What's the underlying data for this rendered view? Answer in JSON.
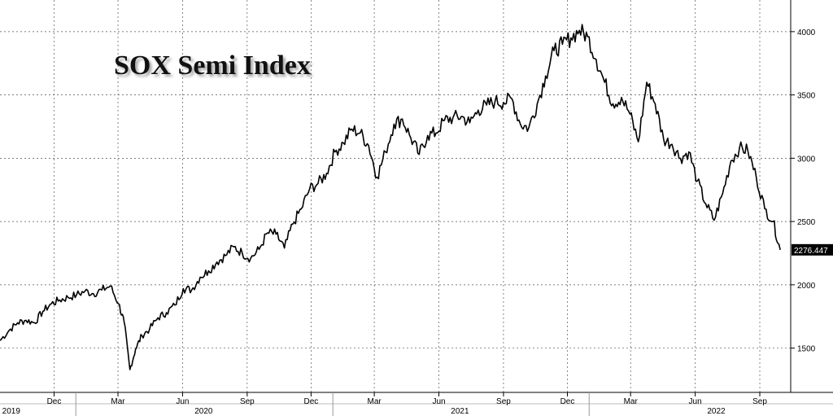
{
  "chart_data": {
    "type": "line",
    "title": "SOX Semi Index",
    "xlabel": "",
    "ylabel": "",
    "xlim": [
      "2019-09-15",
      "2022-10-15"
    ],
    "ylim": [
      1150,
      4250
    ],
    "y_ticks": [
      1500,
      2000,
      2500,
      3000,
      3500,
      4000
    ],
    "x_month_ticks": [
      {
        "label": "Dec",
        "date": "2019-12-01"
      },
      {
        "label": "Mar",
        "date": "2020-03-01"
      },
      {
        "label": "Jun",
        "date": "2020-06-01"
      },
      {
        "label": "Sep",
        "date": "2020-09-01"
      },
      {
        "label": "Dec",
        "date": "2020-12-01"
      },
      {
        "label": "Mar",
        "date": "2021-03-01"
      },
      {
        "label": "Jun",
        "date": "2021-06-01"
      },
      {
        "label": "Sep",
        "date": "2021-09-01"
      },
      {
        "label": "Dec",
        "date": "2021-12-01"
      },
      {
        "label": "Mar",
        "date": "2022-03-01"
      },
      {
        "label": "Jun",
        "date": "2022-06-01"
      },
      {
        "label": "Sep",
        "date": "2022-09-01"
      }
    ],
    "x_year_ticks": [
      {
        "label": "2019",
        "date": "2019-10-01"
      },
      {
        "label": "2020",
        "date": "2020-07-01"
      },
      {
        "label": "2021",
        "date": "2021-07-01"
      },
      {
        "label": "2022",
        "date": "2022-07-01"
      }
    ],
    "last_value_label": "2276.447",
    "last_value": 2276.447,
    "line_color": "#000000",
    "grid": true,
    "series": [
      {
        "x": [
          "2019-09-15",
          "2019-09-28",
          "2019-10-10",
          "2019-10-22",
          "2019-11-03",
          "2019-11-15",
          "2019-11-27",
          "2019-12-09",
          "2019-12-21",
          "2020-01-02",
          "2020-01-14",
          "2020-01-26",
          "2020-02-07",
          "2020-02-19",
          "2020-03-02",
          "2020-03-10",
          "2020-03-18",
          "2020-03-26",
          "2020-04-04",
          "2020-04-15",
          "2020-04-27",
          "2020-05-09",
          "2020-05-21",
          "2020-06-02",
          "2020-06-14",
          "2020-06-26",
          "2020-07-08",
          "2020-07-20",
          "2020-08-01",
          "2020-08-13",
          "2020-08-25",
          "2020-09-06",
          "2020-09-18",
          "2020-09-30",
          "2020-10-12",
          "2020-10-24",
          "2020-11-05",
          "2020-11-17",
          "2020-11-29",
          "2020-12-11",
          "2020-12-23",
          "2021-01-04",
          "2021-01-16",
          "2021-01-28",
          "2021-02-09",
          "2021-02-21",
          "2021-03-05",
          "2021-03-17",
          "2021-03-29",
          "2021-04-10",
          "2021-04-22",
          "2021-05-04",
          "2021-05-16",
          "2021-05-28",
          "2021-06-09",
          "2021-06-21",
          "2021-07-03",
          "2021-07-15",
          "2021-07-27",
          "2021-08-08",
          "2021-08-20",
          "2021-09-01",
          "2021-09-13",
          "2021-09-25",
          "2021-10-07",
          "2021-10-19",
          "2021-10-31",
          "2021-11-12",
          "2021-11-24",
          "2021-12-06",
          "2021-12-18",
          "2021-12-30",
          "2022-01-11",
          "2022-01-23",
          "2022-02-04",
          "2022-02-16",
          "2022-02-28",
          "2022-03-12",
          "2022-03-24",
          "2022-04-05",
          "2022-04-17",
          "2022-04-29",
          "2022-05-11",
          "2022-05-23",
          "2022-06-04",
          "2022-06-16",
          "2022-06-28",
          "2022-07-10",
          "2022-07-22",
          "2022-08-03",
          "2022-08-15",
          "2022-08-27",
          "2022-09-08",
          "2022-09-20",
          "2022-09-30"
        ],
        "values": [
          1560,
          1640,
          1700,
          1720,
          1700,
          1790,
          1850,
          1880,
          1900,
          1920,
          1950,
          1930,
          1960,
          1990,
          1850,
          1700,
          1330,
          1490,
          1600,
          1650,
          1740,
          1780,
          1840,
          1970,
          1960,
          2060,
          2110,
          2180,
          2230,
          2300,
          2250,
          2210,
          2280,
          2410,
          2400,
          2290,
          2480,
          2600,
          2760,
          2800,
          2880,
          3050,
          3120,
          3230,
          3200,
          3100,
          2850,
          3050,
          3270,
          3310,
          3160,
          3030,
          3180,
          3200,
          3300,
          3320,
          3330,
          3280,
          3380,
          3420,
          3450,
          3440,
          3470,
          3270,
          3240,
          3430,
          3650,
          3850,
          3900,
          3950,
          4010,
          3960,
          3780,
          3600,
          3430,
          3480,
          3350,
          3130,
          3600,
          3430,
          3150,
          3110,
          3000,
          3050,
          2820,
          2640,
          2510,
          2720,
          2980,
          3080,
          3060,
          2850,
          2600,
          2500,
          2276.447
        ]
      }
    ]
  }
}
